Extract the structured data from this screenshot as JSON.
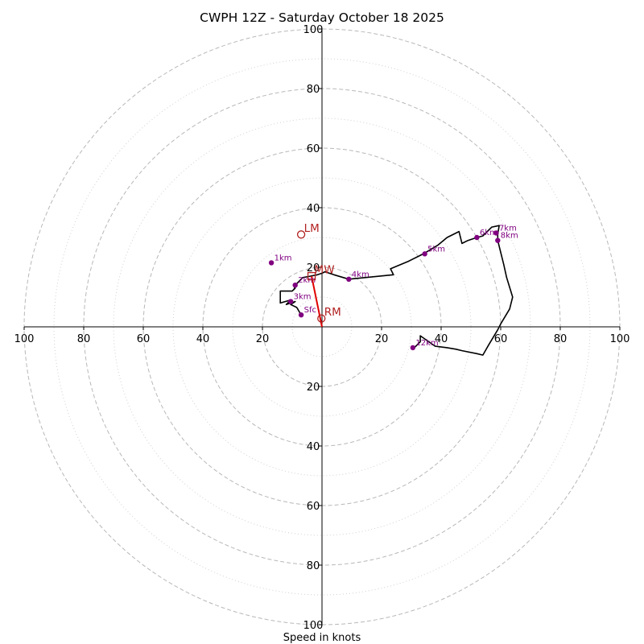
{
  "chart_data": {
    "type": "hodograph",
    "title": "CWPH 12Z - Saturday October 18 2025",
    "xlabel": "Speed in knots",
    "rings_major": [
      20,
      40,
      60,
      80,
      100
    ],
    "rings_minor": [
      10,
      30,
      50,
      70,
      90
    ],
    "x_ticks": [
      {
        "value": -100,
        "label": "100"
      },
      {
        "value": -80,
        "label": "80"
      },
      {
        "value": -60,
        "label": "60"
      },
      {
        "value": -40,
        "label": "40"
      },
      {
        "value": -20,
        "label": "20"
      },
      {
        "value": 20,
        "label": "20"
      },
      {
        "value": 40,
        "label": "40"
      },
      {
        "value": 60,
        "label": "60"
      },
      {
        "value": 80,
        "label": "80"
      },
      {
        "value": 100,
        "label": "100"
      }
    ],
    "y_ticks": [
      {
        "value": 100,
        "label": "100"
      },
      {
        "value": 80,
        "label": "80"
      },
      {
        "value": 60,
        "label": "60"
      },
      {
        "value": 40,
        "label": "40"
      },
      {
        "value": 20,
        "label": "20"
      },
      {
        "value": -20,
        "label": "20"
      },
      {
        "value": -40,
        "label": "40"
      },
      {
        "value": -60,
        "label": "60"
      },
      {
        "value": -80,
        "label": "80"
      },
      {
        "value": -100,
        "label": "100"
      }
    ],
    "limits": {
      "u": [
        -100,
        100
      ],
      "v": [
        -100,
        100
      ]
    },
    "trace_color": "#000000",
    "height_color": "#800080",
    "motion_color": "#b22222",
    "shear_color": "#e00000",
    "trace": [
      [
        -7,
        4
      ],
      [
        -8.5,
        6.5
      ],
      [
        -10.5,
        7.5
      ],
      [
        -9,
        8.5
      ],
      [
        -12,
        7.5
      ],
      [
        -10.5,
        9
      ],
      [
        -14,
        8
      ],
      [
        -14,
        12
      ],
      [
        -10,
        12
      ],
      [
        -9,
        13
      ],
      [
        -9.5,
        12.5
      ],
      [
        -8.5,
        14.5
      ],
      [
        -6.5,
        16.5
      ],
      [
        -4,
        17
      ],
      [
        -1.5,
        17.5
      ],
      [
        0,
        18
      ],
      [
        1,
        18.5
      ],
      [
        4,
        17.5
      ],
      [
        9,
        16
      ],
      [
        24,
        17.5
      ],
      [
        23,
        19.5
      ],
      [
        29,
        22
      ],
      [
        34,
        24.5
      ],
      [
        39,
        27.5
      ],
      [
        42,
        30
      ],
      [
        46,
        32
      ],
      [
        47,
        28
      ],
      [
        49,
        29
      ],
      [
        52,
        30
      ],
      [
        54,
        30.5
      ],
      [
        57,
        33.5
      ],
      [
        59.5,
        34
      ],
      [
        59,
        31
      ],
      [
        59,
        29
      ],
      [
        60,
        25
      ],
      [
        61,
        21
      ],
      [
        62,
        16.5
      ],
      [
        64,
        10
      ],
      [
        63,
        6
      ],
      [
        60,
        1
      ],
      [
        59,
        -1
      ],
      [
        56,
        -6
      ],
      [
        54,
        -9.5
      ],
      [
        52,
        -9
      ],
      [
        47,
        -8
      ],
      [
        45,
        -7.5
      ],
      [
        42,
        -7
      ],
      [
        38,
        -6.5
      ],
      [
        33,
        -3
      ],
      [
        33,
        -5
      ],
      [
        31,
        -7
      ]
    ],
    "height_points": [
      {
        "label": "Sfc",
        "u": -7,
        "v": 4
      },
      {
        "label": "3km",
        "u": -10.5,
        "v": 8.5
      },
      {
        "label": "2km",
        "u": -9,
        "v": 14
      },
      {
        "label": "1km",
        "u": -17,
        "v": 21.5
      },
      {
        "label": "4km",
        "u": 9,
        "v": 16
      },
      {
        "label": "5km",
        "u": 34.5,
        "v": 24.5
      },
      {
        "label": "6km",
        "u": 52,
        "v": 30
      },
      {
        "label": "7km",
        "u": 58.5,
        "v": 31.5
      },
      {
        "label": "8km",
        "u": 59,
        "v": 29
      },
      {
        "label": "12km",
        "u": 30.5,
        "v": -7
      }
    ],
    "storm_motions": [
      {
        "label": "LM",
        "u": -7,
        "v": 31,
        "marker": "circle"
      },
      {
        "label": "MW",
        "u": -3.5,
        "v": 17,
        "marker": "square"
      },
      {
        "label": "RM",
        "u": -0.2,
        "v": 2.8,
        "marker": "circle"
      }
    ],
    "shear_vector": {
      "from_u": 0,
      "from_v": 0,
      "to_u": -3.5,
      "to_v": 17
    }
  }
}
